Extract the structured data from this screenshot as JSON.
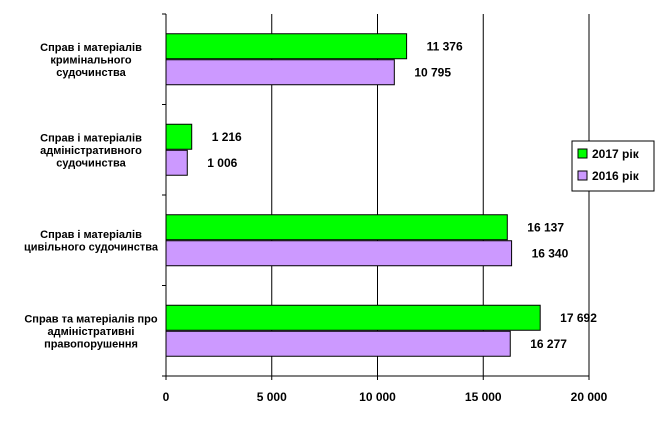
{
  "chart_data": {
    "type": "bar",
    "orientation": "horizontal",
    "categories": [
      "Справ і матеріалів кримінального судочинства",
      "Справ і матеріалів адміністративного судочинства",
      "Справ і матеріалів цивільного судочинства",
      "Справ та матеріалів про адміністративні правопорушення"
    ],
    "category_lines": [
      [
        "Справ і матеріалів",
        "кримінального",
        "судочинства"
      ],
      [
        "Справ і матеріалів",
        "адміністративного",
        "судочинства"
      ],
      [
        "Справ і матеріалів",
        "цивільного судочинства"
      ],
      [
        "Справ та матеріалів про",
        "адміністративні",
        "правопорушення"
      ]
    ],
    "series": [
      {
        "name": "2017 рік",
        "color": "#00ff00",
        "values": [
          11376,
          1216,
          16137,
          17692
        ],
        "value_labels": [
          "11 376",
          "1 216",
          "16 137",
          "17 692"
        ]
      },
      {
        "name": "2016 рік",
        "color": "#cc99ff",
        "values": [
          10795,
          1006,
          16340,
          16277
        ],
        "value_labels": [
          "10 795",
          "1 006",
          "16 340",
          "16 277"
        ]
      }
    ],
    "xlim": [
      0,
      20000
    ],
    "xticks": [
      0,
      5000,
      10000,
      15000,
      20000
    ],
    "xtick_labels": [
      "0",
      "5 000",
      "10 000",
      "15 000",
      "20 000"
    ],
    "grid": "vertical",
    "legend_position": "right"
  }
}
